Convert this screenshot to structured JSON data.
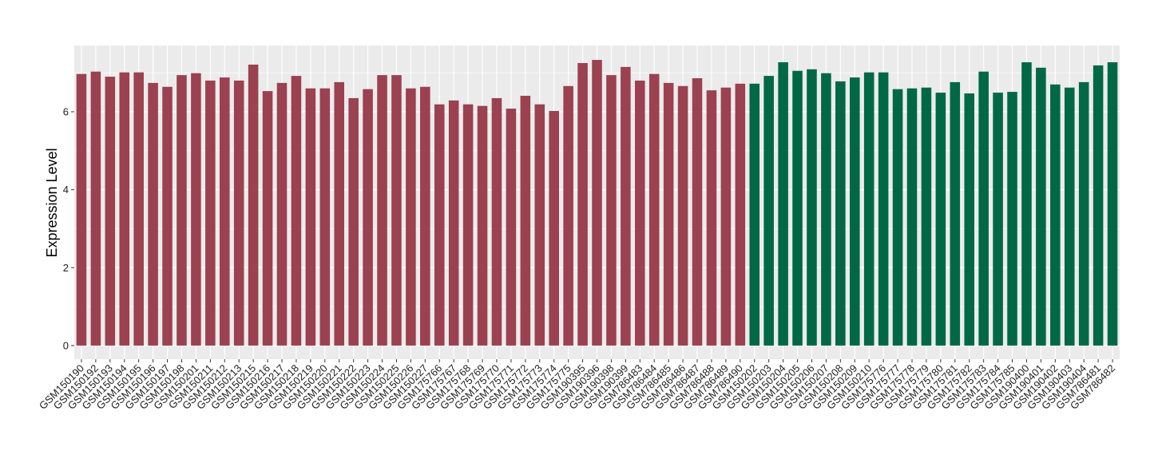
{
  "chart_data": {
    "type": "bar",
    "title": "",
    "xlabel": "",
    "ylabel": "Expression Level",
    "ylim": [
      -0.35,
      7.7
    ],
    "yticks": [
      0,
      2,
      4,
      6
    ],
    "grid": true,
    "legend": "none",
    "colors": {
      "group1": "#9B4150",
      "group2": "#006845",
      "panel": "#EBEBEB",
      "grid": "#FFFFFF"
    },
    "categories": [
      "GSM150190",
      "GSM150192",
      "GSM150193",
      "GSM150194",
      "GSM150195",
      "GSM150196",
      "GSM150197",
      "GSM150198",
      "GSM150201",
      "GSM150211",
      "GSM150212",
      "GSM150213",
      "GSM150215",
      "GSM150216",
      "GSM150217",
      "GSM150218",
      "GSM150219",
      "GSM150220",
      "GSM150221",
      "GSM150222",
      "GSM150223",
      "GSM150224",
      "GSM150225",
      "GSM150226",
      "GSM150227",
      "GSM175766",
      "GSM175767",
      "GSM175768",
      "GSM175769",
      "GSM175770",
      "GSM175771",
      "GSM175772",
      "GSM175773",
      "GSM175774",
      "GSM175775",
      "GSM190395",
      "GSM190396",
      "GSM190398",
      "GSM190399",
      "GSM786483",
      "GSM786484",
      "GSM786485",
      "GSM786486",
      "GSM786487",
      "GSM786488",
      "GSM786489",
      "GSM786490",
      "GSM150202",
      "GSM150203",
      "GSM150204",
      "GSM150205",
      "GSM150206",
      "GSM150207",
      "GSM150208",
      "GSM150209",
      "GSM150210",
      "GSM175776",
      "GSM175777",
      "GSM175778",
      "GSM175779",
      "GSM175780",
      "GSM175781",
      "GSM175782",
      "GSM175783",
      "GSM175784",
      "GSM175785",
      "GSM190400",
      "GSM190401",
      "GSM190402",
      "GSM190403",
      "GSM190404",
      "GSM786481",
      "GSM786482"
    ],
    "values": [
      6.97,
      7.03,
      6.9,
      7.01,
      7.01,
      6.74,
      6.64,
      6.94,
      6.99,
      6.8,
      6.88,
      6.8,
      7.21,
      6.53,
      6.74,
      6.92,
      6.6,
      6.6,
      6.76,
      6.35,
      6.58,
      6.94,
      6.94,
      6.6,
      6.64,
      6.19,
      6.29,
      6.19,
      6.15,
      6.35,
      6.08,
      6.41,
      6.19,
      6.02,
      6.66,
      7.25,
      7.33,
      6.94,
      7.15,
      6.8,
      6.97,
      6.74,
      6.66,
      6.86,
      6.55,
      6.62,
      6.72,
      6.72,
      6.92,
      7.27,
      7.05,
      7.09,
      6.99,
      6.78,
      6.88,
      7.01,
      7.01,
      6.58,
      6.6,
      6.62,
      6.49,
      6.76,
      6.47,
      7.03,
      6.49,
      6.51,
      7.27,
      7.13,
      6.7,
      6.62,
      6.76,
      7.19,
      7.27
    ],
    "groups": [
      1,
      1,
      1,
      1,
      1,
      1,
      1,
      1,
      1,
      1,
      1,
      1,
      1,
      1,
      1,
      1,
      1,
      1,
      1,
      1,
      1,
      1,
      1,
      1,
      1,
      1,
      1,
      1,
      1,
      1,
      1,
      1,
      1,
      1,
      1,
      1,
      1,
      1,
      1,
      1,
      1,
      1,
      1,
      1,
      1,
      1,
      1,
      2,
      2,
      2,
      2,
      2,
      2,
      2,
      2,
      2,
      2,
      2,
      2,
      2,
      2,
      2,
      2,
      2,
      2,
      2,
      2,
      2,
      2,
      2,
      2,
      2,
      2
    ]
  }
}
